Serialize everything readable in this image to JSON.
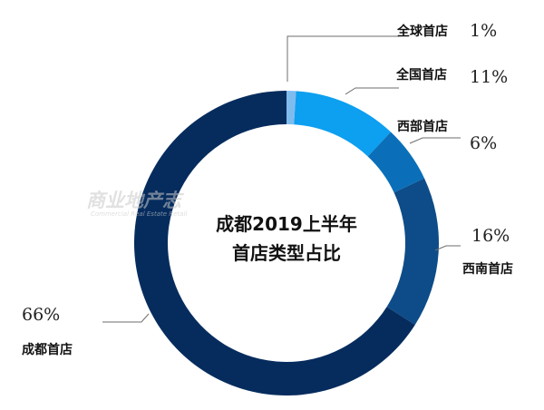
{
  "chart_data": {
    "type": "pie",
    "title": "成都2019上半年首店类型占比",
    "title_lines": [
      "成都2019上半年",
      "首店类型占比"
    ],
    "slices": [
      {
        "name": "全球首店",
        "label": "1%",
        "value": 1,
        "color": "#7fbcee"
      },
      {
        "name": "全国首店",
        "label": "11%",
        "value": 11,
        "color": "#0d9ff0"
      },
      {
        "name": "西部首店",
        "label": "6%",
        "value": 6,
        "color": "#0a6fb8"
      },
      {
        "name": "西南首店",
        "label": "16%",
        "value": 16,
        "color": "#0d4c88"
      },
      {
        "name": "成都首店",
        "label": "66%",
        "value": 66,
        "color": "#062c5e"
      }
    ],
    "donut": true,
    "start": "12 o'clock, clockwise"
  },
  "watermark": {
    "mark": "商业地产志",
    "sub": "Commercial Real Estate Retail"
  }
}
